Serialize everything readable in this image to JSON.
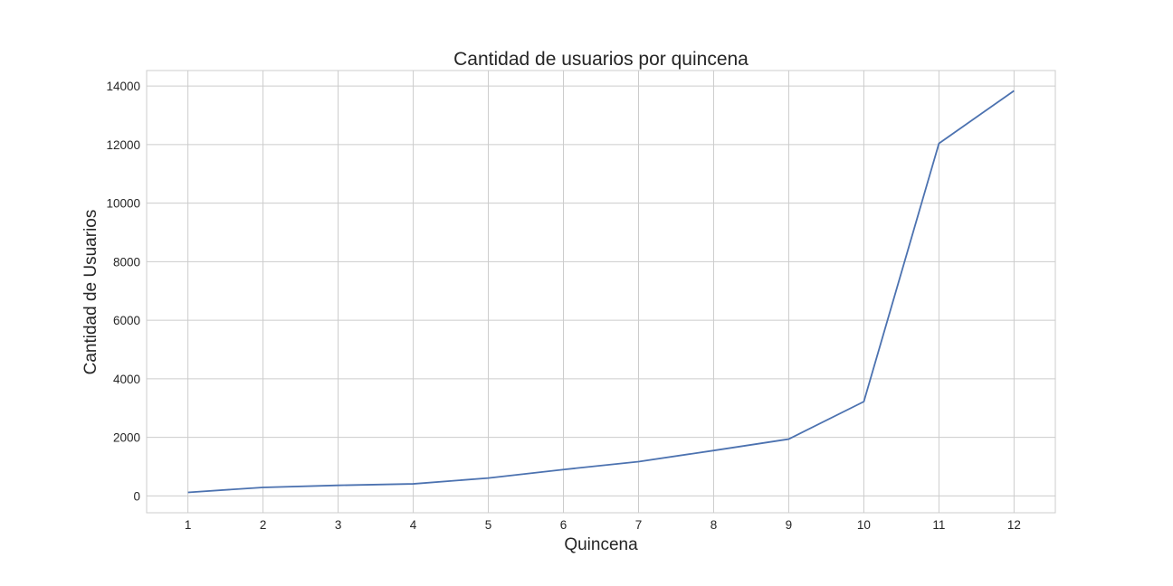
{
  "chart_data": {
    "type": "line",
    "title": "Cantidad de usuarios por quincena",
    "xlabel": "Quincena",
    "ylabel": "Cantidad de Usuarios",
    "x": [
      1,
      2,
      3,
      4,
      5,
      6,
      7,
      8,
      9,
      10,
      11,
      12
    ],
    "series": [
      {
        "values": [
          120,
          290,
          360,
          410,
          610,
          900,
          1170,
          1550,
          1940,
          3220,
          12040,
          13840
        ]
      }
    ],
    "xticks": [
      "1",
      "2",
      "3",
      "4",
      "5",
      "6",
      "7",
      "8",
      "9",
      "10",
      "11",
      "12"
    ],
    "yticks": [
      "0",
      "2000",
      "4000",
      "6000",
      "8000",
      "10000",
      "12000",
      "14000"
    ],
    "xlim": [
      0.45,
      12.55
    ],
    "ylim": [
      -576,
      14530
    ],
    "grid": true,
    "colors": {
      "line": "#4c72b0",
      "grid": "#cccccc",
      "frame": "#cccccc"
    }
  }
}
